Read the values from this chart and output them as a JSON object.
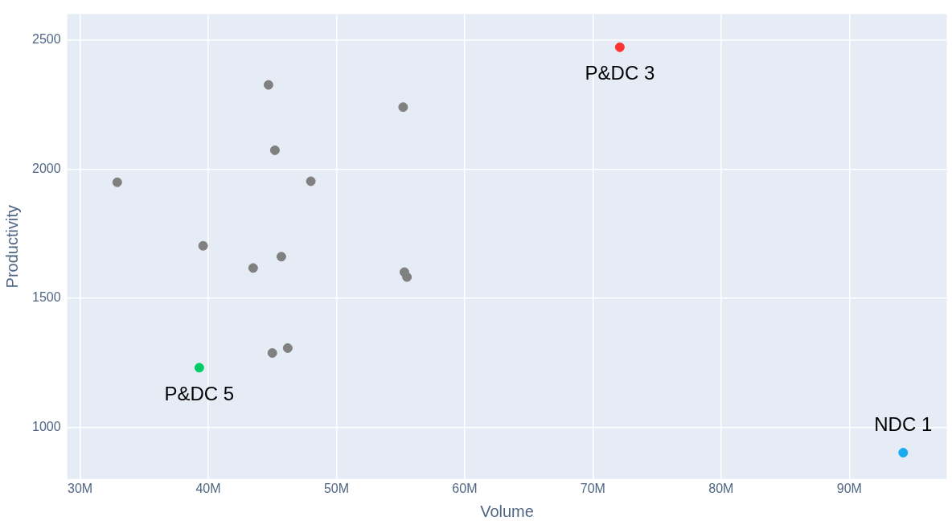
{
  "chart_data": {
    "type": "scatter",
    "xlabel": "Volume",
    "ylabel": "Productivity",
    "x": [
      32900000,
      44700000,
      55200000,
      45200000,
      48000000,
      39600000,
      43500000,
      45700000,
      55300000,
      55500000,
      45000000,
      46200000,
      39300000,
      72100000,
      94200000
    ],
    "values": [
      1949,
      2326,
      2240,
      2073,
      1953,
      1703,
      1617,
      1661,
      1601,
      1582,
      1288,
      1307,
      1231,
      2472,
      902
    ],
    "colors": [
      "#808080",
      "#808080",
      "#808080",
      "#808080",
      "#808080",
      "#808080",
      "#808080",
      "#808080",
      "#808080",
      "#808080",
      "#808080",
      "#808080",
      "#00cc66",
      "#ff3333",
      "#1aaaf0"
    ],
    "xlim": [
      29000000,
      97600000
    ],
    "xticks": [
      {
        "value": 30000000,
        "label": "30M"
      },
      {
        "value": 40000000,
        "label": "40M"
      },
      {
        "value": 50000000,
        "label": "50M"
      },
      {
        "value": 60000000,
        "label": "60M"
      },
      {
        "value": 70000000,
        "label": "70M"
      },
      {
        "value": 80000000,
        "label": "80M"
      },
      {
        "value": 90000000,
        "label": "90M"
      }
    ],
    "ylim": [
      800,
      2600
    ],
    "yticks": [
      1000,
      1500,
      2000,
      2500
    ],
    "annotations": [
      {
        "text": "P&DC 3",
        "x": 72100000,
        "y": 2472
      },
      {
        "text": "P&DC 5",
        "x": 39300000,
        "y": 1231
      },
      {
        "text": "NDC 1",
        "x": 94200000,
        "y": 902
      }
    ],
    "grid": true,
    "legend": false,
    "marker": "circle"
  }
}
